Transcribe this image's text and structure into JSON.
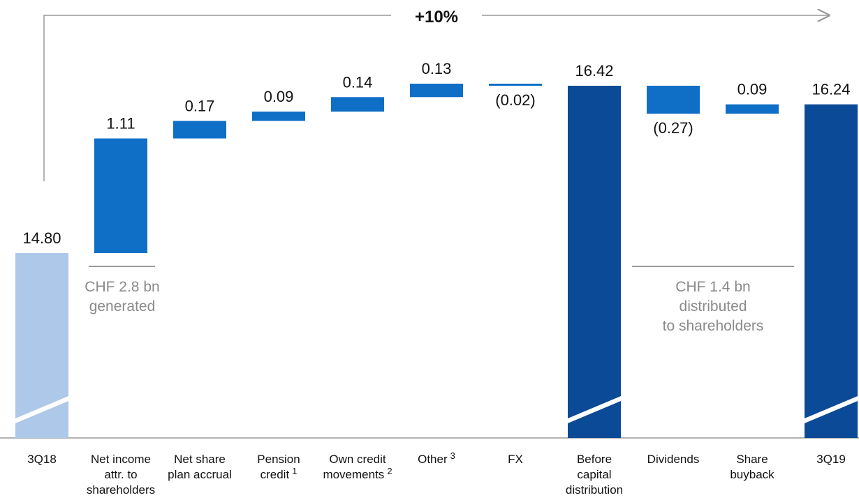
{
  "chart_data": {
    "type": "waterfall",
    "categories": [
      [
        "3Q18"
      ],
      [
        "Net income",
        "attr. to",
        "shareholders"
      ],
      [
        "Net share",
        "plan accrual"
      ],
      [
        "Pension",
        "credit"
      ],
      [
        "Own credit",
        "movements"
      ],
      [
        "Other"
      ],
      [
        "FX"
      ],
      [
        "Before",
        "capital",
        "distribution"
      ],
      [
        "Dividends"
      ],
      [
        "Share",
        "buyback"
      ],
      [
        "3Q19"
      ]
    ],
    "category_notes": [
      null,
      null,
      null,
      "1",
      "2",
      "3",
      null,
      null,
      null,
      null,
      null
    ],
    "values": [
      14.8,
      1.11,
      0.17,
      0.09,
      0.14,
      0.13,
      -0.02,
      16.42,
      -0.27,
      0.09,
      16.24
    ],
    "value_labels": [
      "14.80",
      "1.11",
      "0.17",
      "0.09",
      "0.14",
      "0.13",
      "(0.02)",
      "16.42",
      "(0.27)",
      "0.09",
      "16.24"
    ],
    "kinds": [
      "start",
      "delta",
      "delta",
      "delta",
      "delta",
      "delta",
      "delta",
      "total",
      "delta",
      "delta",
      "total"
    ],
    "colors": {
      "start": "#adc8e8",
      "delta": "#0f6fc6",
      "total": "#0b4a96"
    },
    "annotations": {
      "growth": "+10%",
      "generated": [
        "CHF 2.8 bn",
        "generated"
      ],
      "distributed": [
        "CHF 1.4 bn",
        "distributed",
        "to shareholders"
      ]
    }
  }
}
